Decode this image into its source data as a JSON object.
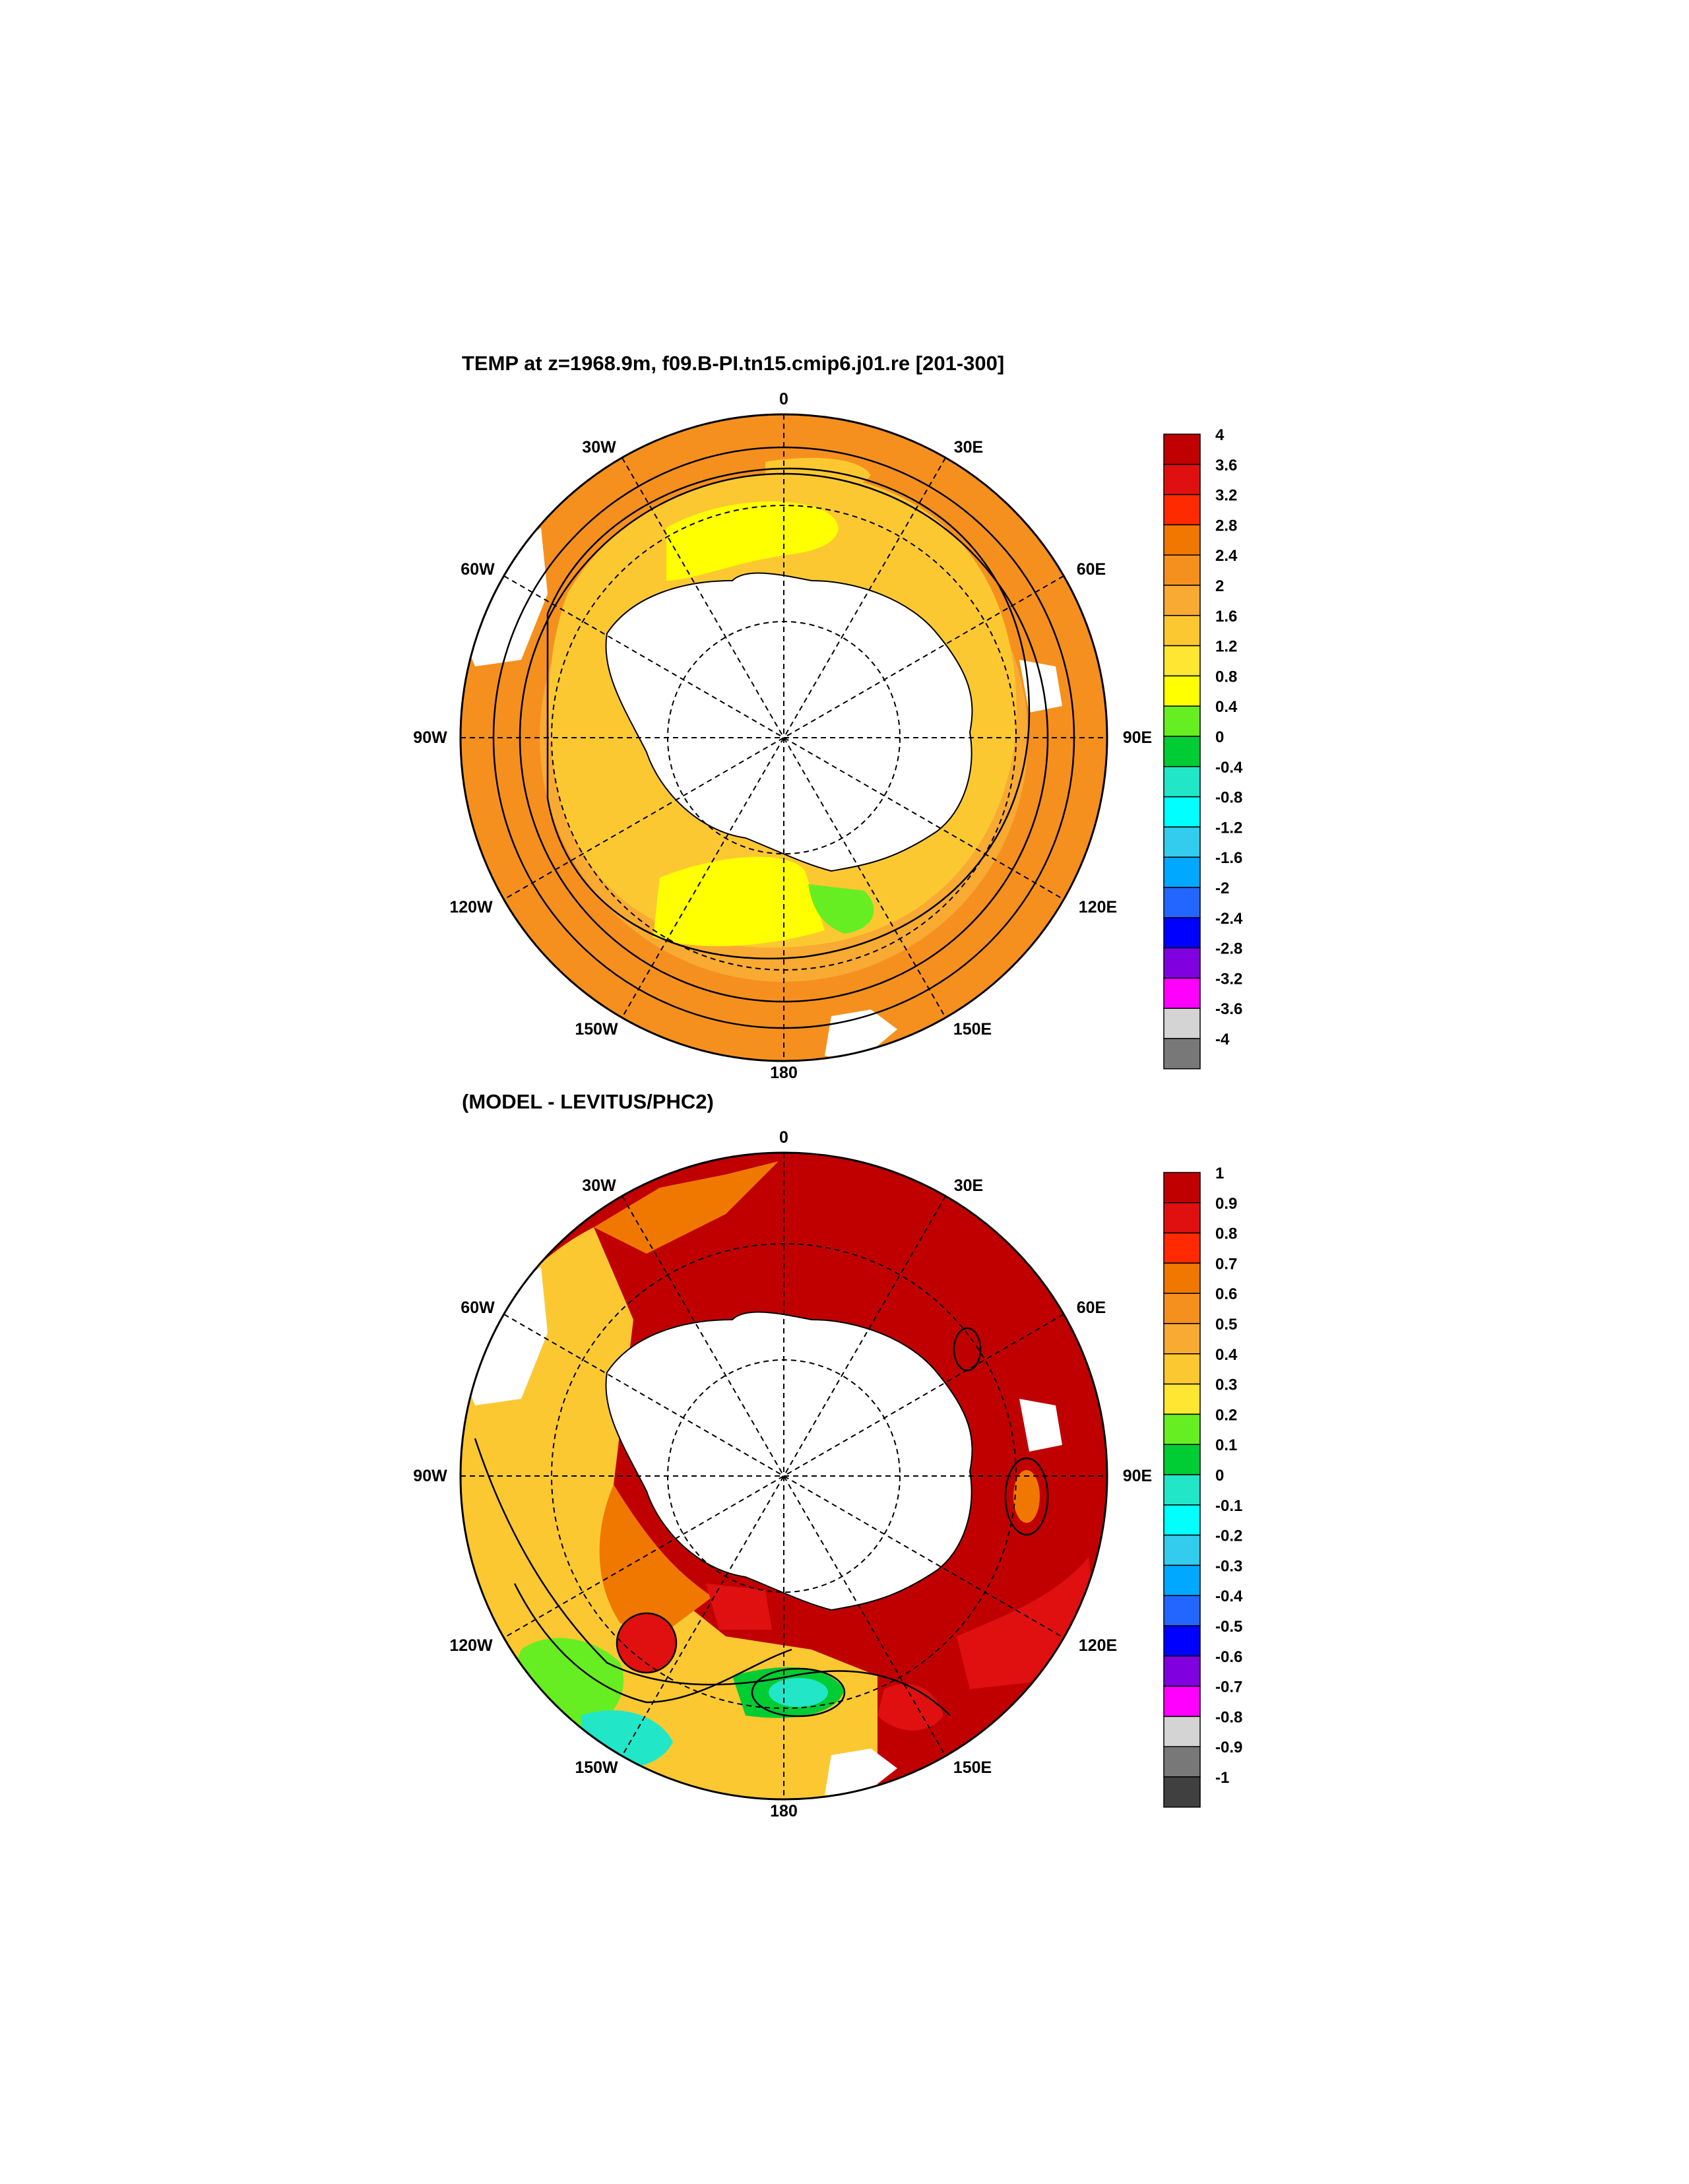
{
  "panel_top": {
    "title": "TEMP at z=1968.9m, f09.B-PI.tn15.cmip6.j01.re [201-300]",
    "lon_labels": {
      "n": "0",
      "nne": "30E",
      "ene": "60E",
      "e": "90E",
      "ese": "120E",
      "sse": "150E",
      "s": "180",
      "ssw": "150W",
      "wsw": "120W",
      "w": "90W",
      "wnw": "60W",
      "nnw": "30W"
    },
    "colorbar": {
      "labels": [
        "4",
        "3.6",
        "3.2",
        "2.8",
        "2.4",
        "2",
        "1.6",
        "1.2",
        "0.8",
        "0.4",
        "0",
        "-0.4",
        "-0.8",
        "-1.2",
        "-1.6",
        "-2",
        "-2.4",
        "-2.8",
        "-3.2",
        "-3.6",
        "-4"
      ],
      "colors": [
        "#c00000",
        "#e01010",
        "#ff2a00",
        "#f07800",
        "#f5901e",
        "#f8aa32",
        "#fcc832",
        "#ffe632",
        "#ffff00",
        "#66ee22",
        "#00cc33",
        "#22e6c8",
        "#00ffff",
        "#33ccee",
        "#00a8ff",
        "#2266ff",
        "#0000ff",
        "#8000e0",
        "#ff00ff",
        "#d4d4d4",
        "#787878"
      ]
    },
    "field_colors": {
      "ring_outer": "#f5901e",
      "ring_mid": "#f8aa32",
      "ring_inner": "#fcc832",
      "yellow": "#ffff00",
      "green": "#66ee22"
    }
  },
  "panel_bottom": {
    "title": "(MODEL - LEVITUS/PHC2)",
    "lon_labels": {
      "n": "0",
      "nne": "30E",
      "ene": "60E",
      "e": "90E",
      "ese": "120E",
      "sse": "150E",
      "s": "180",
      "ssw": "150W",
      "wsw": "120W",
      "w": "90W",
      "wnw": "60W",
      "nnw": "30W"
    },
    "colorbar": {
      "labels": [
        "1",
        "0.9",
        "0.8",
        "0.7",
        "0.6",
        "0.5",
        "0.4",
        "0.3",
        "0.2",
        "0.1",
        "0",
        "-0.1",
        "-0.2",
        "-0.3",
        "-0.4",
        "-0.5",
        "-0.6",
        "-0.7",
        "-0.8",
        "-0.9",
        "-1"
      ],
      "colors": [
        "#c00000",
        "#e01010",
        "#ff2a00",
        "#f07800",
        "#f5901e",
        "#f8aa32",
        "#fcc832",
        "#ffe632",
        "#66ee22",
        "#00cc33",
        "#22e6c8",
        "#00ffff",
        "#33ccee",
        "#00a8ff",
        "#2266ff",
        "#0000ff",
        "#8000e0",
        "#ff00ff",
        "#d4d4d4",
        "#787878",
        "#404040"
      ]
    },
    "field_colors": {
      "dark_red": "#c00000",
      "red": "#e01010",
      "orange": "#f07800",
      "light_orange": "#f8aa32",
      "yellow": "#fcc832",
      "green": "#66ee22",
      "cyan": "#22e6c8"
    }
  }
}
